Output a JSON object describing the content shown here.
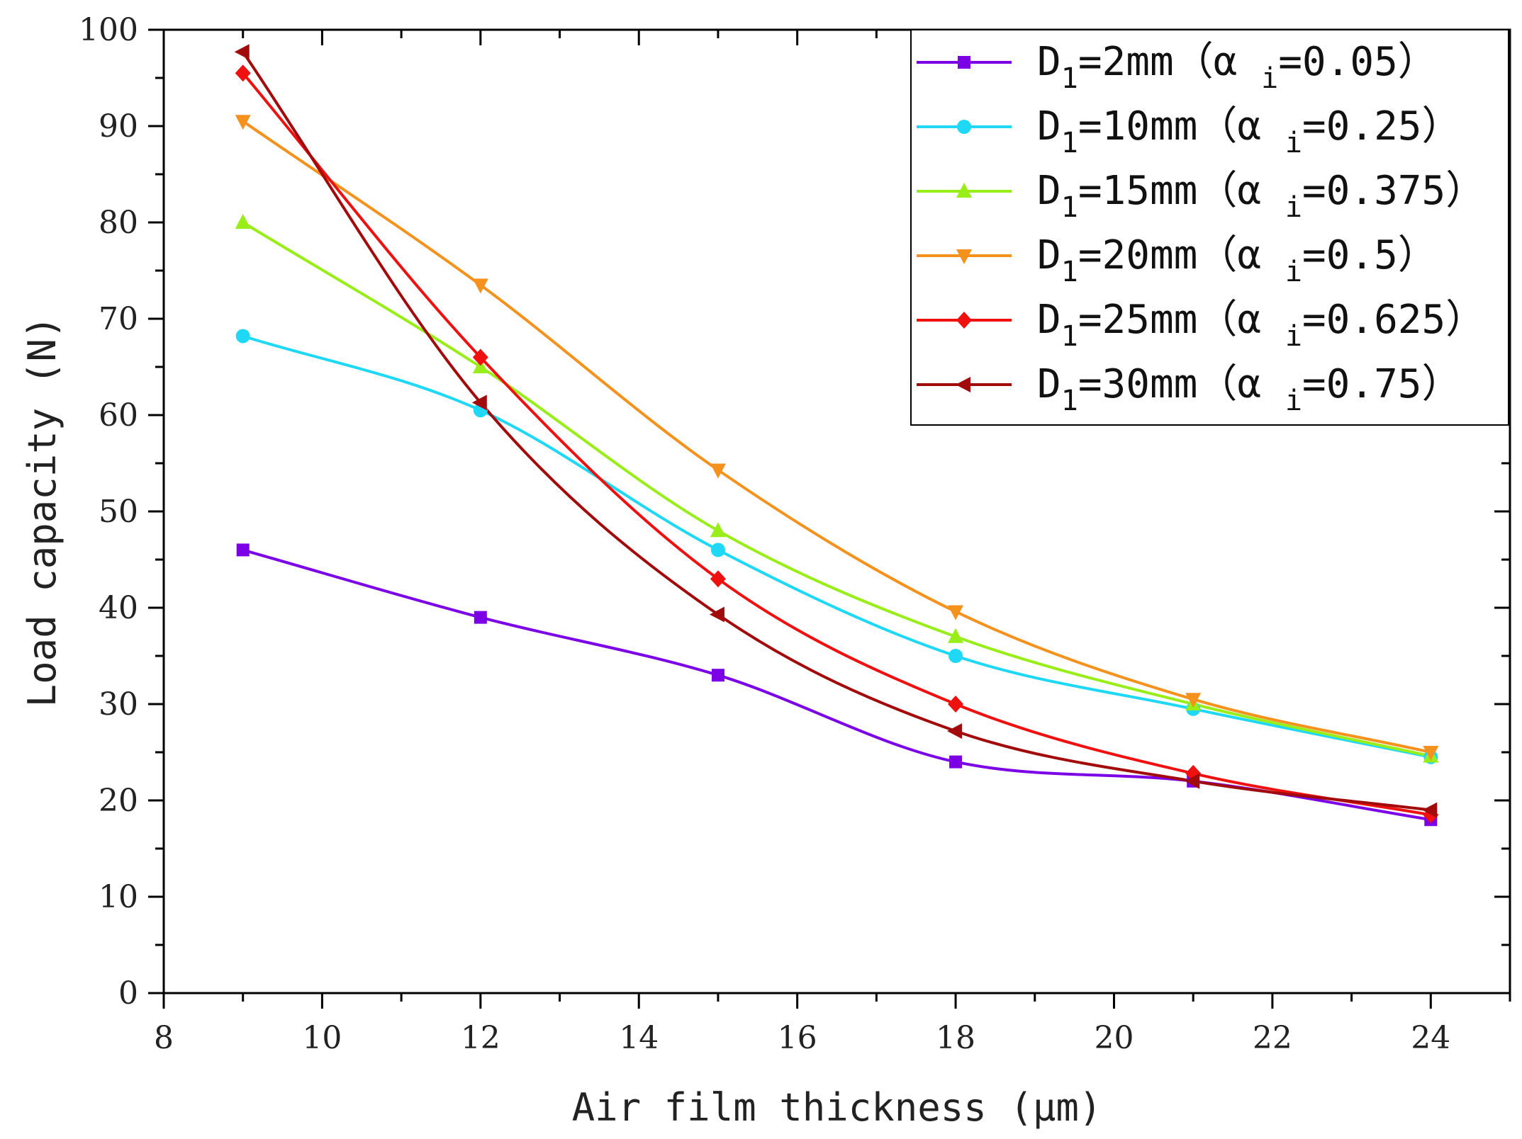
{
  "chart_data": {
    "type": "line",
    "title": "",
    "xlabel": "Air film thickness (μm)",
    "ylabel": "Load capacity (N)",
    "xlim": [
      8,
      25
    ],
    "ylim": [
      0,
      100
    ],
    "x_ticks": [
      8,
      10,
      12,
      14,
      16,
      18,
      20,
      22,
      24
    ],
    "y_ticks": [
      0,
      10,
      20,
      30,
      40,
      50,
      60,
      70,
      80,
      90,
      100
    ],
    "grid": false,
    "legend_position": "top-right",
    "x": [
      9,
      12,
      15,
      18,
      21,
      24
    ],
    "series": [
      {
        "name": "D1=2mm (αi=0.05)",
        "prefix": "D",
        "sub": "1",
        "mid": "=2mm（α ",
        "sub2": "i",
        "suffix": "=0.05）",
        "color": "#7b00e6",
        "marker": "square",
        "values": [
          46,
          39,
          33,
          24,
          22,
          18
        ]
      },
      {
        "name": "D1=10mm (αi=0.25)",
        "prefix": "D",
        "sub": "1",
        "mid": "=10mm（α ",
        "sub2": "i",
        "suffix": "=0.25）",
        "color": "#1ed8f5",
        "marker": "circle",
        "values": [
          68.2,
          60.5,
          46,
          35,
          29.5,
          24.5
        ]
      },
      {
        "name": "D1=15mm (αi=0.375)",
        "prefix": "D",
        "sub": "1",
        "mid": "=15mm（α ",
        "sub2": "i",
        "suffix": "=0.375）",
        "color": "#99ee1a",
        "marker": "triangle-up",
        "values": [
          80,
          65,
          48,
          37,
          30,
          24.6
        ]
      },
      {
        "name": "D1=20mm (αi=0.5)",
        "prefix": "D",
        "sub": "1",
        "mid": "=20mm（α ",
        "sub2": "i",
        "suffix": "=0.5）",
        "color": "#f5921e",
        "marker": "triangle-down",
        "values": [
          90.5,
          73.5,
          54.3,
          39.6,
          30.5,
          25
        ]
      },
      {
        "name": "D1=25mm (αi=0.625)",
        "prefix": "D",
        "sub": "1",
        "mid": "=25mm（α ",
        "sub2": "i",
        "suffix": "=0.625）",
        "color": "#ef1010",
        "marker": "diamond",
        "values": [
          95.5,
          66,
          43,
          30,
          22.8,
          18.5
        ]
      },
      {
        "name": "D1=30mm (αi=0.75)",
        "prefix": "D",
        "sub": "1",
        "mid": "=30mm（α ",
        "sub2": "i",
        "suffix": "=0.75）",
        "color": "#a20b0b",
        "marker": "triangle-left",
        "values": [
          97.7,
          61.3,
          39.3,
          27.2,
          22,
          19
        ]
      }
    ]
  }
}
